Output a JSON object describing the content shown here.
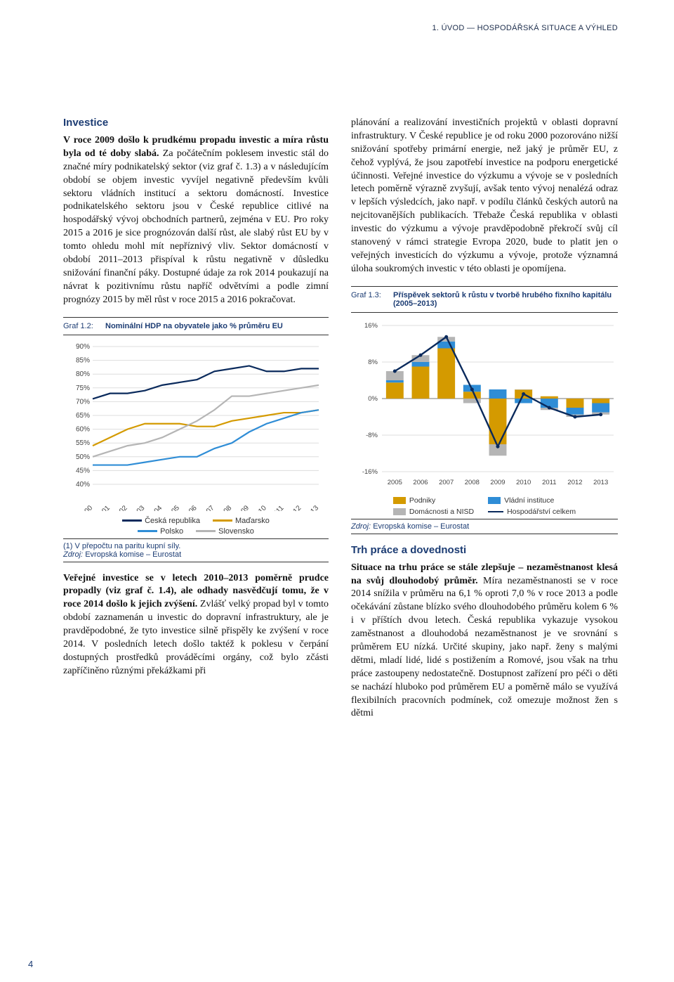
{
  "runhead": "1.    ÚVOD — HOSPODÁŘSKÁ SITUACE A VÝHLED",
  "page_number": "4",
  "left": {
    "section_heading": "Investice",
    "para1_lead": "V roce 2009 došlo k prudkému propadu investic a míra růstu byla od té doby slabá.",
    "para1_rest": " Za počátečním poklesem investic stál do značné míry podnikatelský sektor (viz graf č. 1.3) a v následujícím období se objem investic vyvíjel negativně především kvůli sektoru vládních institucí a sektoru domácností. Investice podnikatelského sektoru jsou v České republice citlivé na hospodářský vývoj obchodních partnerů, zejména v EU. Pro roky 2015 a 2016 je sice prognózován další růst, ale slabý růst EU by v tomto ohledu mohl mít nepříznivý vliv. Sektor domácností v období 2011–2013 přispíval k růstu negativně v důsledku snižování finanční páky. Dostupné údaje za rok 2014 poukazují na návrat k pozitivnímu růstu napříč odvětvími a podle zimní prognózy 2015 by měl růst v roce 2015 a 2016 pokračovat.",
    "graf12_label": "Graf 1.2:",
    "graf12_title": "Nominální HDP na obyvatele jako % průměru EU",
    "line_chart": {
      "type": "line",
      "y_ticks": [
        "40%",
        "45%",
        "50%",
        "55%",
        "60%",
        "65%",
        "70%",
        "75%",
        "80%",
        "85%",
        "90%"
      ],
      "y_min": 40,
      "y_max": 90,
      "x_labels": [
        "2000",
        "2001",
        "2002",
        "2003",
        "2004",
        "2005",
        "2006",
        "2007",
        "2008",
        "2009",
        "2010",
        "2011",
        "2012",
        "2013"
      ],
      "series": [
        {
          "name": "Česká republika",
          "color": "#0a2a5c",
          "values": [
            71,
            73,
            73,
            74,
            76,
            77,
            78,
            81,
            82,
            83,
            81,
            81,
            82,
            82
          ]
        },
        {
          "name": "Maďarsko",
          "color": "#d49a00",
          "values": [
            54,
            57,
            60,
            62,
            62,
            62,
            61,
            61,
            63,
            64,
            65,
            66,
            66,
            67
          ]
        },
        {
          "name": "Polsko",
          "color": "#2f8dd6",
          "values": [
            47,
            47,
            47,
            48,
            49,
            50,
            50,
            53,
            55,
            59,
            62,
            64,
            66,
            67
          ]
        },
        {
          "name": "Slovensko",
          "color": "#b5b5b5",
          "values": [
            50,
            52,
            54,
            55,
            57,
            60,
            63,
            67,
            72,
            72,
            73,
            74,
            75,
            76
          ]
        }
      ],
      "plot_bg": "#ffffff",
      "grid_color": "#dddddd",
      "axis_color": "#777777",
      "font_size": 10
    },
    "legend12": {
      "ceska": "Česká republika",
      "madarsko": "Maďarsko",
      "polsko": "Polsko",
      "slovensko": "Slovensko"
    },
    "source12_note": "(1) V přepočtu na paritu kupní síly.",
    "source12_src": "Zdroj: Evropská komise – Eurostat",
    "para2_lead": "Veřejné investice se v letech 2010–2013 poměrně prudce propadly (viz graf č. 1.4), ale odhady nasvědčují tomu, že v roce 2014 došlo k jejich zvýšení.",
    "para2_rest": " Zvlášť velký propad byl v tomto období zaznamenán u investic do dopravní infrastruktury, ale je pravděpodobné, že tyto investice silně přispěly ke zvýšení v roce 2014. V posledních letech došlo taktéž k poklesu v čerpání dostupných prostředků prováděcími orgány, což bylo zčásti zapříčiněno různými překážkami při"
  },
  "right": {
    "para_top": "plánování a realizování investičních projektů v oblasti dopravní infrastruktury. V České republice je od roku 2000 pozorováno nižší snižování spotřeby primární energie, než jaký je průměr EU, z čehož vyplývá, že jsou zapotřebí investice na podporu energetické účinnosti. Veřejné investice do výzkumu a vývoje se v posledních letech poměrně výrazně zvyšují, avšak tento vývoj nenalézá odraz v lepších výsledcích, jako např. v podílu článků českých autorů na nejcitovanějších publikacích. Třebaže Česká republika v oblasti investic do výzkumu a vývoje pravděpodobně překročí svůj cíl stanovený v rámci strategie Evropa 2020, bude to platit jen o veřejných investicích do výzkumu a vývoje, protože významná úloha soukromých investic v této oblasti je opomíjena.",
    "graf13_label": "Graf 1.3:",
    "graf13_title": "Příspěvek sektorů k růstu v tvorbě hrubého fixního kapitálu (2005–2013)",
    "bar_chart": {
      "type": "bar_stacked_with_line",
      "y_ticks": [
        "-16%",
        "-8%",
        "0%",
        "8%",
        "16%"
      ],
      "y_min": -16,
      "y_max": 16,
      "x_labels": [
        "2005",
        "2006",
        "2007",
        "2008",
        "2009",
        "2010",
        "2011",
        "2012",
        "2013"
      ],
      "series": [
        {
          "name": "Podniky",
          "color": "#d49a00",
          "values": [
            3.5,
            7.0,
            11.0,
            1.5,
            -10.0,
            2.0,
            0.5,
            -2.0,
            -1.0
          ]
        },
        {
          "name": "Vládní instituce",
          "color": "#2f8dd6",
          "values": [
            0.5,
            1.0,
            1.5,
            1.5,
            2.0,
            -1.0,
            -2.0,
            -1.5,
            -2.0
          ]
        },
        {
          "name": "Domácnosti a NISD",
          "color": "#b5b5b5",
          "values": [
            2.0,
            1.5,
            1.0,
            -1.0,
            -2.5,
            0.0,
            -0.5,
            -0.5,
            -0.5
          ]
        }
      ],
      "line_series": {
        "name": "Hospodářství celkem",
        "color": "#0a2a5c",
        "values": [
          6.0,
          9.5,
          13.5,
          2.0,
          -10.5,
          1.0,
          -2.0,
          -4.0,
          -3.5
        ]
      },
      "plot_bg": "#ffffff",
      "grid_color": "#dddddd",
      "axis_color": "#777777",
      "bar_group_width": 0.68
    },
    "legend13": {
      "podniky": "Podniky",
      "vladni": "Vládní instituce",
      "domacnosti": "Domácnosti a NISD",
      "hosp": "Hospodářství celkem"
    },
    "source13_src": "Zdroj: Evropská komise – Eurostat",
    "section2_heading": "Trh práce a dovednosti",
    "para2_lead": "Situace na trhu práce se stále zlepšuje – nezaměstnanost klesá na svůj dlouhodobý průměr.",
    "para2_rest": " Míra nezaměstnanosti se v roce 2014 snížila v průměru na 6,1 % oproti 7,0 % v roce 2013 a podle očekávání zůstane blízko svého dlouhodobého průměru kolem 6 % i v příštích dvou letech. Česká republika vykazuje vysokou zaměstnanost a dlouhodobá nezaměstnanost je ve srovnání s průměrem EU nízká. Určité skupiny, jako např. ženy s malými dětmi, mladí lidé, lidé s postižením a Romové, jsou však na trhu práce zastoupeny nedostatečně. Dostupnost zařízení pro péči o děti se nachází hluboko pod průměrem EU a poměrně málo se využívá flexibilních pracovních podmínek, což omezuje možnost žen s dětmi"
  }
}
